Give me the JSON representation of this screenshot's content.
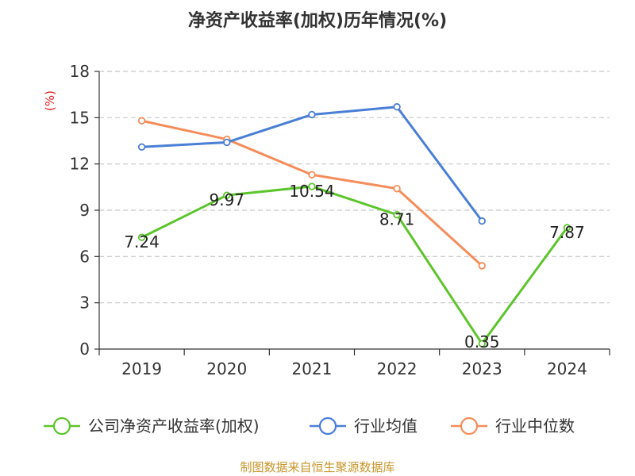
{
  "chart_data": {
    "type": "line",
    "title": "净资产收益率(加权)历年情况(%)",
    "ylabel": "(%)",
    "xlabel": "",
    "categories": [
      "2019",
      "2020",
      "2021",
      "2022",
      "2023",
      "2024"
    ],
    "ylim": [
      0,
      18
    ],
    "yticks": [
      0,
      3,
      6,
      9,
      12,
      15,
      18
    ],
    "grid": true,
    "legend_position": "bottom",
    "series": [
      {
        "name": "公司净资产收益率(加权)",
        "color": "#5cc52c",
        "values": [
          7.24,
          9.97,
          10.54,
          8.71,
          0.35,
          7.87
        ],
        "labels": [
          "7.24",
          "9.97",
          "10.54",
          "8.71",
          "0.35",
          "7.87"
        ]
      },
      {
        "name": "行业均值",
        "color": "#4a7fd6",
        "values": [
          13.1,
          13.4,
          15.2,
          15.7,
          8.3,
          null
        ]
      },
      {
        "name": "行业中位数",
        "color": "#f58d5a",
        "values": [
          14.8,
          13.6,
          11.3,
          10.4,
          5.4,
          null
        ]
      }
    ],
    "source": "制图数据来自恒生聚源数据库"
  }
}
